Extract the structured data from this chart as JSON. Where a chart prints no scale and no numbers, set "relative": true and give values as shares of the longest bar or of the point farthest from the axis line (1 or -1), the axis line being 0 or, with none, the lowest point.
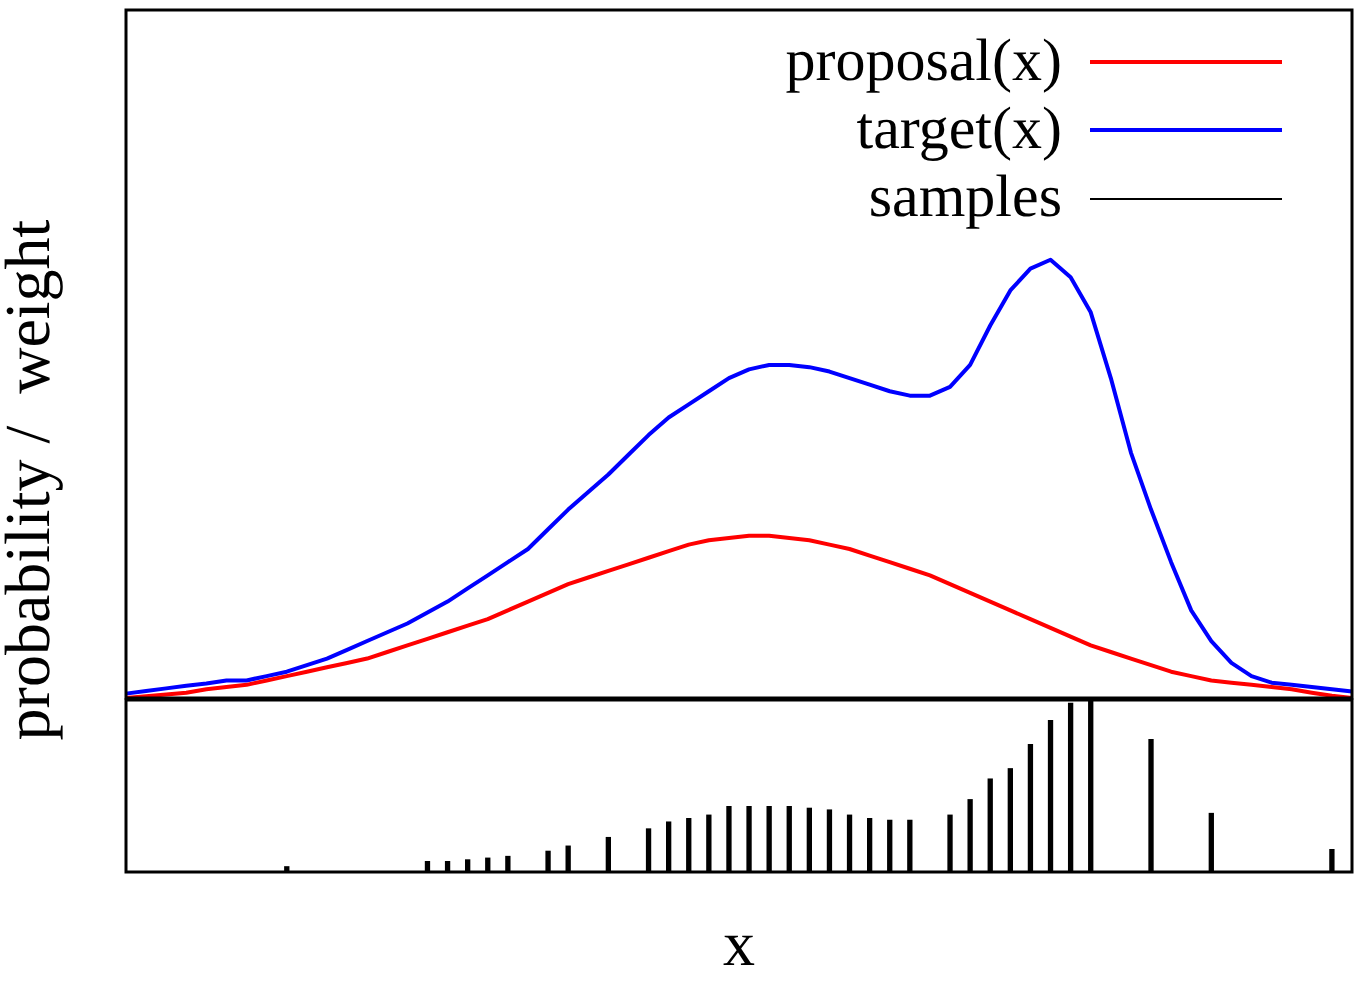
{
  "chart_data": [
    {
      "type": "line",
      "relative": true,
      "ylabel": "probability /  weight",
      "legend": "top right",
      "categories": [
        null,
        null,
        null,
        null,
        null,
        null,
        null,
        null,
        null,
        null,
        null,
        null,
        null,
        null,
        null,
        null,
        null,
        null,
        null,
        null,
        null,
        null,
        null,
        null,
        null,
        null,
        null,
        null,
        null,
        null,
        null,
        null,
        null,
        null,
        null,
        null,
        null,
        null,
        null,
        null,
        null,
        null,
        null,
        null,
        null,
        null,
        null,
        null,
        null,
        null,
        null,
        null,
        null,
        null,
        null,
        null,
        null,
        null,
        null,
        null,
        null,
        null
      ],
      "series": [
        {
          "name": "proposal(x)",
          "color": "#ff0000",
          "values": [
            0,
            0.004,
            0.008,
            0.012,
            0.02,
            0.025,
            0.03,
            0.04,
            0.05,
            0.06,
            0.07,
            0.08,
            0.09,
            0.105,
            0.12,
            0.135,
            0.15,
            0.165,
            0.18,
            0.2,
            0.22,
            0.24,
            0.26,
            0.275,
            0.29,
            0.305,
            0.32,
            0.335,
            0.35,
            0.36,
            0.365,
            0.37,
            0.37,
            0.365,
            0.36,
            0.35,
            0.34,
            0.325,
            0.31,
            0.295,
            0.28,
            0.26,
            0.24,
            0.22,
            0.2,
            0.18,
            0.16,
            0.14,
            0.12,
            0.105,
            0.09,
            0.075,
            0.06,
            0.05,
            0.04,
            0.035,
            0.03,
            0.025,
            0.02,
            0.012,
            0.005,
            0
          ]
        },
        {
          "name": "target(x)",
          "color": "#0000ff",
          "values": [
            0.01,
            0.016,
            0.022,
            0.028,
            0.033,
            0.04,
            0.04,
            0.05,
            0.06,
            0.075,
            0.09,
            0.11,
            0.13,
            0.15,
            0.17,
            0.195,
            0.22,
            0.25,
            0.28,
            0.31,
            0.34,
            0.385,
            0.43,
            0.47,
            0.51,
            0.555,
            0.6,
            0.64,
            0.67,
            0.7,
            0.73,
            0.75,
            0.76,
            0.76,
            0.755,
            0.745,
            0.73,
            0.715,
            0.7,
            0.69,
            0.69,
            0.71,
            0.76,
            0.85,
            0.93,
            0.98,
            1,
            0.96,
            0.88,
            0.73,
            0.56,
            0.43,
            0.31,
            0.2,
            0.13,
            0.08,
            0.05,
            0.035,
            0.03,
            0.025,
            0.02,
            0.015
          ]
        }
      ]
    },
    {
      "type": "bar",
      "relative": true,
      "xlabel": "x",
      "legend": "top right",
      "categories": [
        null,
        null,
        null,
        null,
        null,
        null,
        null,
        null,
        null,
        null,
        null,
        null,
        null,
        null,
        null,
        null,
        null,
        null,
        null,
        null,
        null,
        null,
        null,
        null,
        null,
        null,
        null,
        null,
        null,
        null,
        null,
        null,
        null,
        null,
        null,
        null,
        null,
        null,
        null,
        null,
        null,
        null,
        null,
        null,
        null,
        null,
        null,
        null,
        null,
        null,
        null,
        null,
        null,
        null,
        null,
        null,
        null,
        null,
        null,
        null,
        null,
        null
      ],
      "series": [
        {
          "name": "samples",
          "color": "#000000",
          "values": [
            null,
            null,
            null,
            null,
            null,
            null,
            null,
            null,
            0.03,
            null,
            null,
            null,
            null,
            null,
            null,
            0.06,
            0.06,
            0.07,
            0.08,
            0.09,
            null,
            0.12,
            0.15,
            null,
            0.2,
            null,
            0.25,
            0.29,
            0.31,
            0.33,
            0.38,
            0.38,
            0.38,
            0.38,
            0.37,
            0.36,
            0.33,
            0.31,
            0.3,
            0.3,
            null,
            0.33,
            0.42,
            0.54,
            0.6,
            0.74,
            0.88,
            0.98,
            1,
            null,
            null,
            0.77,
            null,
            null,
            0.34,
            null,
            null,
            null,
            null,
            null,
            0.13,
            null
          ]
        }
      ]
    }
  ]
}
